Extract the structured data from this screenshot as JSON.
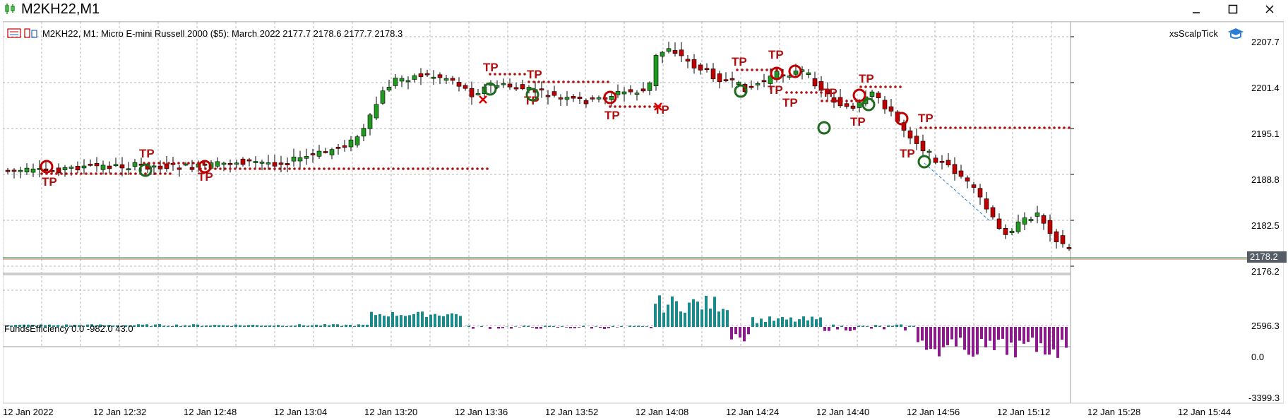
{
  "window": {
    "title": "M2KH22,M1",
    "icon": "chart-candles-icon"
  },
  "chart": {
    "header": "M2KH22, M1:  Micro E-mini Russell 2000 ($5): March 2022  2177.7 2178.6 2177.7 2178.3",
    "expert_name": "xsScalpTick",
    "expert_icon": "graduation-cap-icon",
    "current_price": "2178.2",
    "price_axis": [
      "2207.7",
      "2201.4",
      "2195.1",
      "2188.8",
      "2182.5",
      "2176.2"
    ],
    "indicator_name": "FundsEfficiency 0.0 -982.0 43.0",
    "indicator_axis": [
      "2596.3",
      "0.0",
      "-3399.3"
    ],
    "time_axis": [
      "12 Jan 2022",
      "12 Jan 12:32",
      "12 Jan 12:48",
      "12 Jan 13:04",
      "12 Jan 13:20",
      "12 Jan 13:36",
      "12 Jan 13:52",
      "12 Jan 14:08",
      "12 Jan 14:24",
      "12 Jan 14:40",
      "12 Jan 14:56",
      "12 Jan 15:12",
      "12 Jan 15:28",
      "12 Jan 15:44"
    ],
    "tp_label": "TP",
    "colors": {
      "bull": "#1e9a1e",
      "bear": "#c00000",
      "tp": "#b01010",
      "histogram_pos": "#1b8a8a",
      "histogram_neg": "#8b1a8b",
      "grid": "#b4b4b4",
      "price_line": "#2e7d32"
    }
  }
}
